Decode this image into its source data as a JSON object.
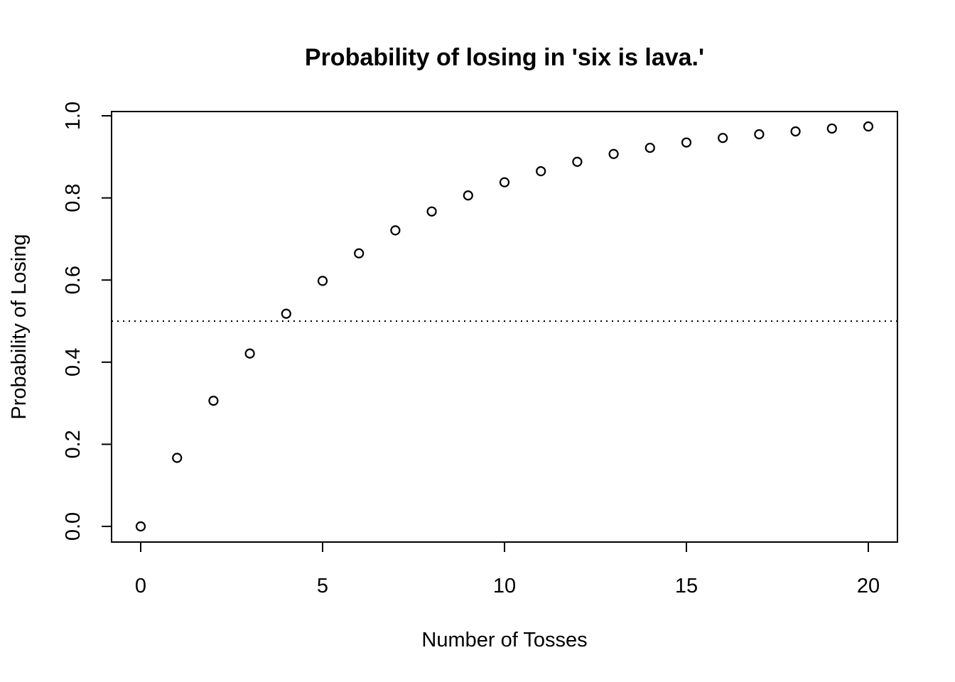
{
  "chart_data": {
    "type": "scatter",
    "title": "Probability of losing in 'six is lava.'",
    "xlabel": "Number of Tosses",
    "ylabel": "Probability of Losing",
    "x": [
      0,
      1,
      2,
      3,
      4,
      5,
      6,
      7,
      8,
      9,
      10,
      11,
      12,
      13,
      14,
      15,
      16,
      17,
      18,
      19,
      20
    ],
    "y": [
      0.0,
      0.167,
      0.306,
      0.421,
      0.518,
      0.598,
      0.665,
      0.721,
      0.767,
      0.806,
      0.838,
      0.865,
      0.888,
      0.907,
      0.922,
      0.935,
      0.946,
      0.955,
      0.962,
      0.969,
      0.974
    ],
    "xlim": [
      0,
      20
    ],
    "ylim": [
      0,
      1
    ],
    "xticks": [
      0,
      5,
      10,
      15,
      20
    ],
    "xtick_labels": [
      "0",
      "5",
      "10",
      "15",
      "20"
    ],
    "yticks": [
      0,
      0.2,
      0.4,
      0.6,
      0.8,
      1.0
    ],
    "ytick_labels": [
      "0.0",
      "0.2",
      "0.4",
      "0.6",
      "0.8",
      "1.0"
    ],
    "reference_line": {
      "y": 0.5,
      "style": "dotted"
    },
    "marker": "open-circle",
    "grid": false,
    "colors": {
      "points": "#000000",
      "background": "#ffffff"
    }
  }
}
